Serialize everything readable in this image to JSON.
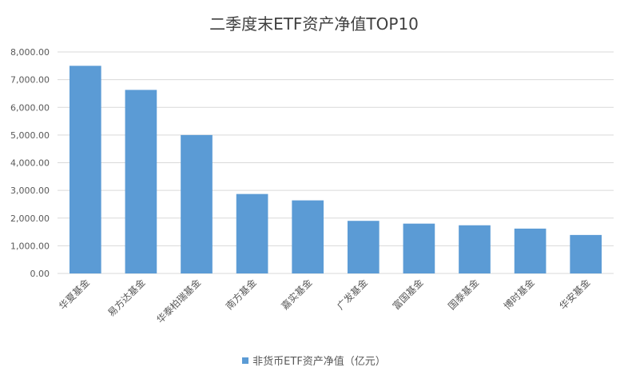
{
  "chart_data": {
    "type": "bar",
    "title": "二季度末ETF资产净值TOP10",
    "categories": [
      "华夏基金",
      "易方达基金",
      "华泰柏瑞基金",
      "南方基金",
      "嘉实基金",
      "广发基金",
      "富国基金",
      "国泰基金",
      "博时基金",
      "华安基金"
    ],
    "series": [
      {
        "name": "非货币ETF资产净值（亿元）",
        "values": [
          7500,
          6630,
          5000,
          2870,
          2640,
          1900,
          1800,
          1740,
          1620,
          1390
        ],
        "color": "#5b9bd5"
      }
    ],
    "ylim": [
      0,
      8000
    ],
    "yticks": [
      "0.00",
      "1,000.00",
      "2,000.00",
      "3,000.00",
      "4,000.00",
      "5,000.00",
      "6,000.00",
      "7,000.00",
      "8,000.00"
    ],
    "ytick_values": [
      0,
      1000,
      2000,
      3000,
      4000,
      5000,
      6000,
      7000,
      8000
    ],
    "grid": true,
    "legend_position": "bottom",
    "xlabel": "",
    "ylabel": ""
  }
}
